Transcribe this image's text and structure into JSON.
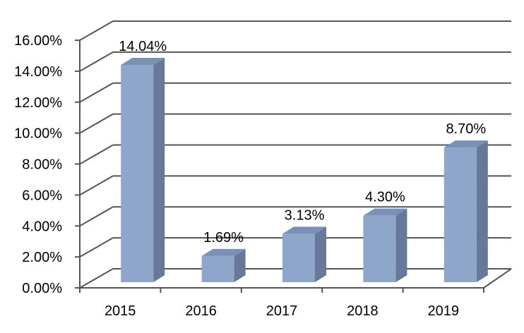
{
  "chart_data": {
    "type": "bar",
    "title": "",
    "xlabel": "",
    "ylabel": "",
    "categories": [
      "2015",
      "2016",
      "2017",
      "2018",
      "2019"
    ],
    "values": [
      14.04,
      1.69,
      3.13,
      4.3,
      8.7
    ],
    "data_labels": [
      "14.04%",
      "1.69%",
      "3.13%",
      "4.30%",
      "8.70%"
    ],
    "ylim": [
      0,
      16
    ],
    "yticks": [
      0,
      2,
      4,
      6,
      8,
      10,
      12,
      14,
      16
    ],
    "ytick_labels": [
      "0.00%",
      "2.00%",
      "4.00%",
      "6.00%",
      "8.00%",
      "10.00%",
      "12.00%",
      "14.00%",
      "16.00%"
    ],
    "grid": true,
    "legend": "none",
    "three_d": true,
    "colors": {
      "bar_front": "#8EA6CA",
      "bar_side": "#66799A",
      "bar_top": "#7A90B4",
      "grid": "#555555"
    }
  }
}
